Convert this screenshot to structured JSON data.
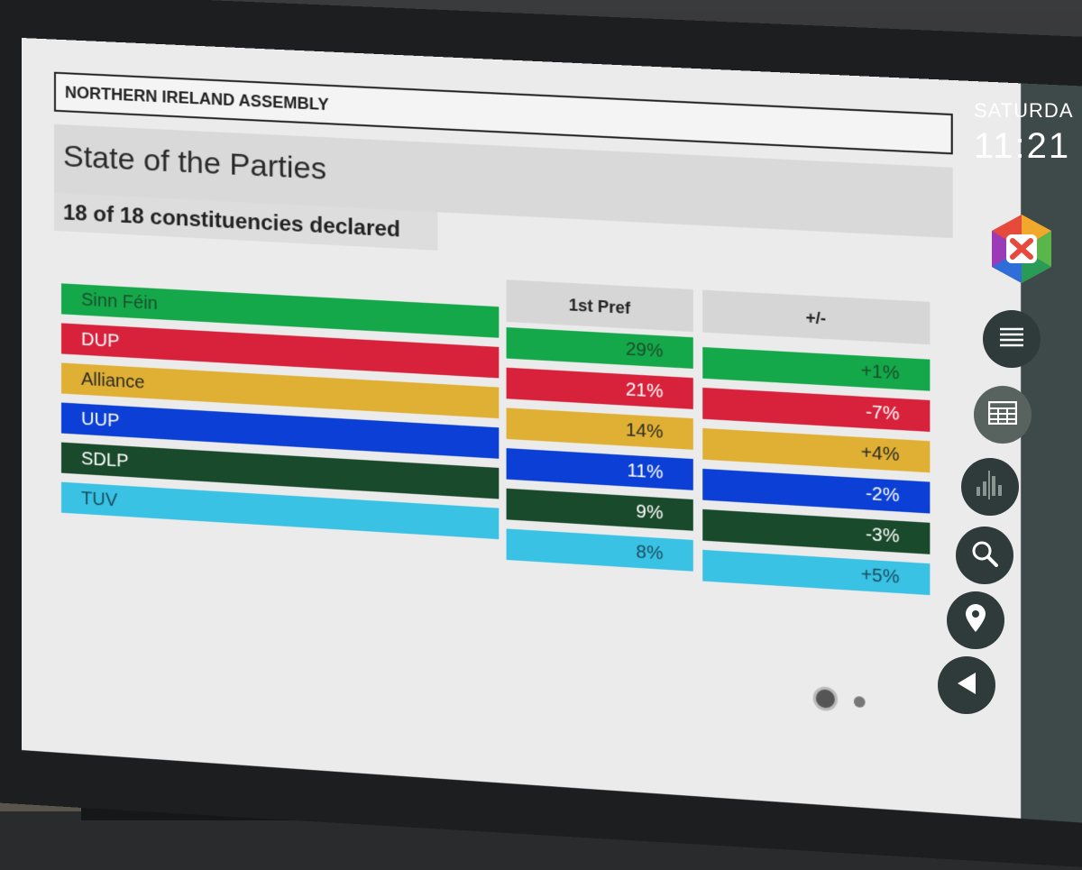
{
  "header": {
    "label": "NORTHERN IRELAND ASSEMBLY"
  },
  "title": "State of the Parties",
  "subtitle": "18 of 18 constituencies declared",
  "columns": {
    "first_pref": "1st Pref",
    "change": "+/-"
  },
  "parties": [
    {
      "name": "Sinn Féin",
      "color": "#15a84a",
      "text_color": "#1a4d2a",
      "first_pref": "29%",
      "change": "+1%"
    },
    {
      "name": "DUP",
      "color": "#d8213b",
      "text_color": "#ffffff",
      "first_pref": "21%",
      "change": "-7%"
    },
    {
      "name": "Alliance",
      "color": "#e0b034",
      "text_color": "#2a2a2a",
      "first_pref": "14%",
      "change": "+4%"
    },
    {
      "name": "UUP",
      "color": "#0b3fd6",
      "text_color": "#ffffff",
      "first_pref": "11%",
      "change": "-2%"
    },
    {
      "name": "SDLP",
      "color": "#1a4a2c",
      "text_color": "#ffffff",
      "first_pref": "9%",
      "change": "-3%"
    },
    {
      "name": "TUV",
      "color": "#39c2e3",
      "text_color": "#1a4d60",
      "first_pref": "8%",
      "change": "+5%"
    }
  ],
  "sidebar": {
    "day": "SATURDA",
    "time": "11:21",
    "buttons": [
      {
        "icon": "list-icon",
        "active": false
      },
      {
        "icon": "table-icon",
        "active": true
      },
      {
        "icon": "bar-chart-icon",
        "active": false
      },
      {
        "icon": "search-icon",
        "active": false
      },
      {
        "icon": "map-pin-icon",
        "active": false
      },
      {
        "icon": "back-arrow-icon",
        "active": false
      }
    ]
  },
  "pagination": {
    "pages": 2,
    "current": 1
  }
}
